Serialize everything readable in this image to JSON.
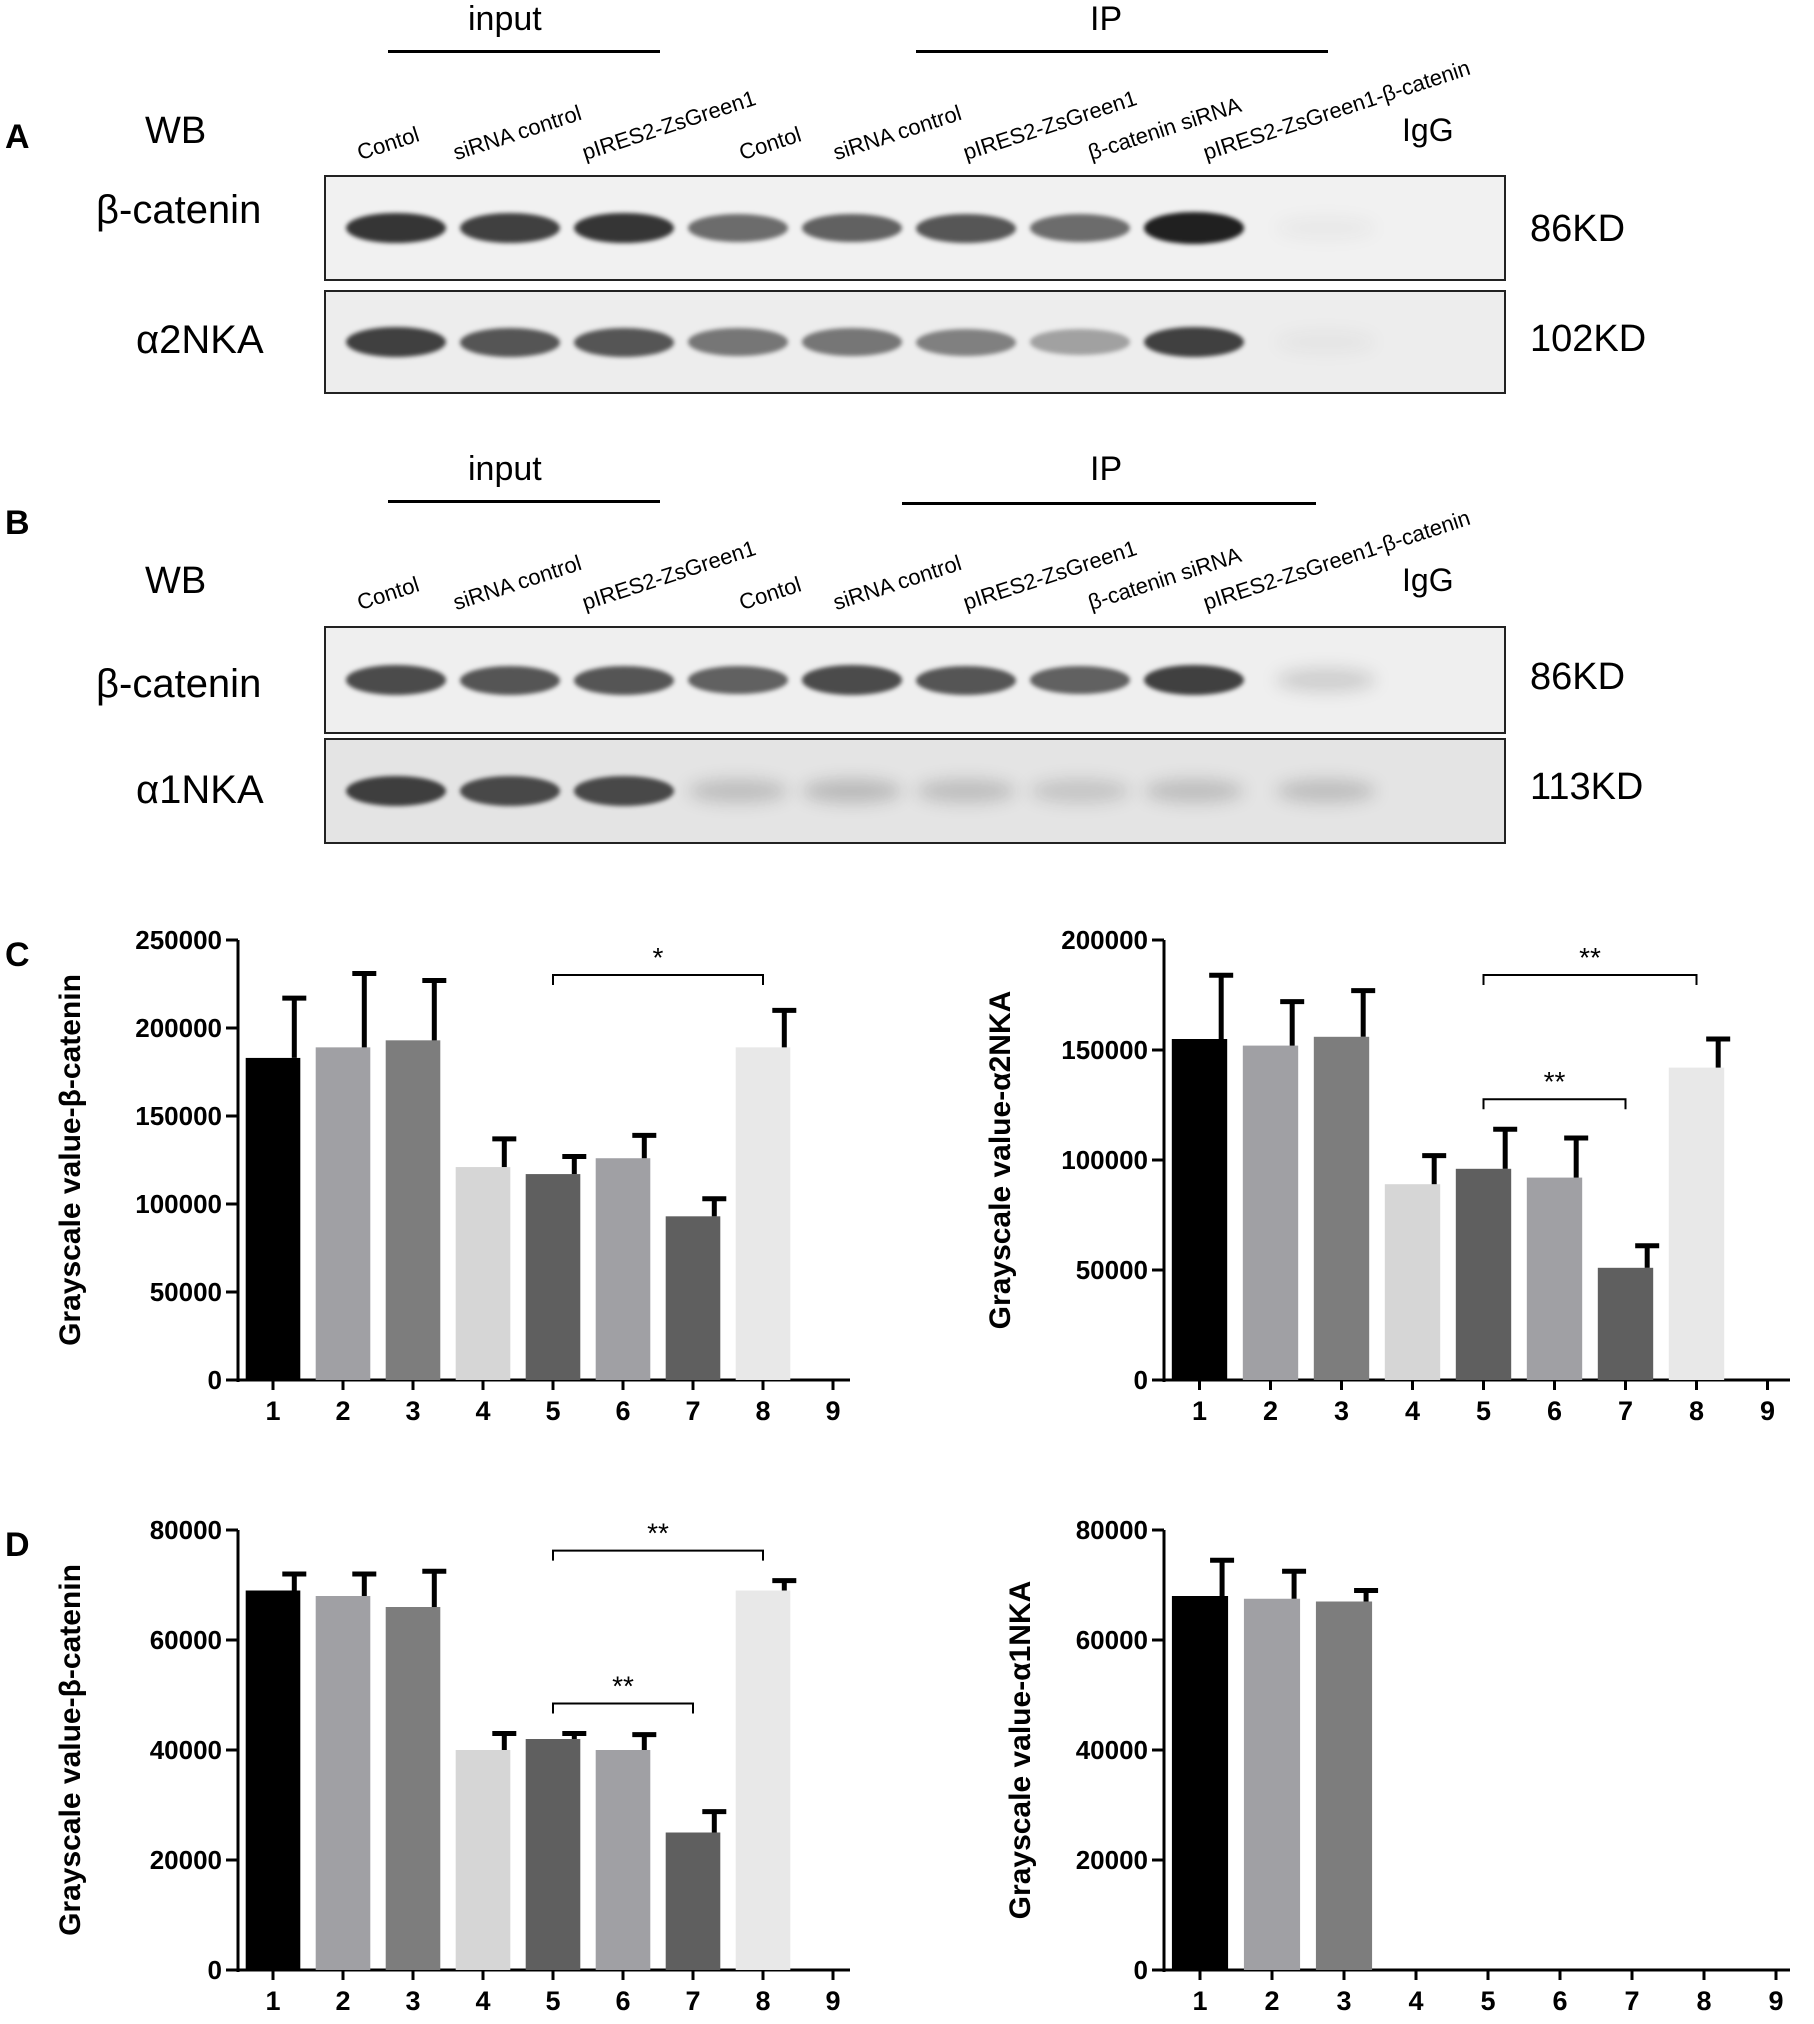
{
  "panels": {
    "A": {
      "letter": "A",
      "input_label": "input",
      "ip_label": "IP",
      "wb_label": "WB",
      "lanes": [
        "Contol",
        "siRNA control",
        "pIRES2-ZsGreen1",
        "Contol",
        "siRNA control",
        "pIRES2-ZsGreen1",
        "β-catenin siRNA",
        "pIRES2-ZsGreen1-β-catenin"
      ],
      "igg_label": "IgG",
      "blots": [
        {
          "protein": "β-catenin",
          "size": "86KD",
          "intensity": [
            0.85,
            0.8,
            0.85,
            0.6,
            0.65,
            0.7,
            0.6,
            0.95,
            0.04
          ]
        },
        {
          "protein": "α2NKA",
          "size": "102KD",
          "intensity": [
            0.8,
            0.7,
            0.7,
            0.55,
            0.55,
            0.5,
            0.35,
            0.8,
            0.04
          ]
        }
      ]
    },
    "B": {
      "letter": "B",
      "input_label": "input",
      "ip_label": "IP",
      "wb_label": "WB",
      "lanes": [
        "Contol",
        "siRNA control",
        "pIRES2-ZsGreen1",
        "Contol",
        "siRNA control",
        "pIRES2-ZsGreen1",
        "β-catenin siRNA",
        "pIRES2-ZsGreen1-β-catenin"
      ],
      "igg_label": "IgG",
      "blots": [
        {
          "protein": "β-catenin",
          "size": "86KD",
          "intensity": [
            0.75,
            0.7,
            0.7,
            0.65,
            0.75,
            0.7,
            0.65,
            0.8,
            0.15
          ]
        },
        {
          "protein": "α1NKA",
          "size": "113KD",
          "intensity": [
            0.8,
            0.75,
            0.75,
            0.18,
            0.2,
            0.18,
            0.15,
            0.18,
            0.18
          ]
        }
      ]
    },
    "C": {
      "letter": "C"
    },
    "D": {
      "letter": "D"
    }
  },
  "bar_colors": [
    "#000000",
    "#a0a0a4",
    "#7d7d7d",
    "#d6d6d6",
    "#5f5f5f",
    "#a0a0a4",
    "#5f5f5f",
    "#e8e8e8",
    "#ffffff"
  ],
  "chart_data": [
    {
      "type": "bar",
      "panel": "C",
      "categories": [
        "1",
        "2",
        "3",
        "4",
        "5",
        "6",
        "7",
        "8",
        "9"
      ],
      "values": [
        183000,
        189000,
        193000,
        121000,
        117000,
        126000,
        93000,
        189000,
        0
      ],
      "errors": [
        34000,
        42000,
        34000,
        16000,
        10000,
        13000,
        10000,
        21000,
        0
      ],
      "ylabel": "Grayscale value-β-catenin",
      "ylim": [
        0,
        250000
      ],
      "yticks": [
        "0",
        "50000",
        "100000",
        "150000",
        "200000",
        "250000"
      ],
      "brackets": [
        {
          "from": "5",
          "to": "8",
          "label": "*"
        }
      ]
    },
    {
      "type": "bar",
      "panel": "C",
      "categories": [
        "1",
        "2",
        "3",
        "4",
        "5",
        "6",
        "7",
        "8",
        "9"
      ],
      "values": [
        155000,
        152000,
        156000,
        89000,
        96000,
        92000,
        51000,
        142000,
        0
      ],
      "errors": [
        29000,
        20000,
        21000,
        13000,
        18000,
        18000,
        10000,
        13000,
        0
      ],
      "ylabel": "Grayscale value-α2NKA",
      "ylim": [
        0,
        200000
      ],
      "yticks": [
        "0",
        "50000",
        "100000",
        "150000",
        "200000"
      ],
      "brackets": [
        {
          "from": "5",
          "to": "8",
          "label": "**"
        },
        {
          "from": "5",
          "to": "7",
          "label": "**"
        }
      ]
    },
    {
      "type": "bar",
      "panel": "D",
      "categories": [
        "1",
        "2",
        "3",
        "4",
        "5",
        "6",
        "7",
        "8",
        "9"
      ],
      "values": [
        69000,
        68000,
        66000,
        40000,
        42000,
        40000,
        25000,
        69000,
        0
      ],
      "errors": [
        3000,
        4000,
        6500,
        3000,
        1000,
        2800,
        3800,
        1800,
        0
      ],
      "ylabel": "Grayscale value-β-catenin",
      "ylim": [
        0,
        80000
      ],
      "yticks": [
        "0",
        "20000",
        "40000",
        "60000",
        "80000"
      ],
      "brackets": [
        {
          "from": "5",
          "to": "8",
          "label": "**"
        },
        {
          "from": "5",
          "to": "7",
          "label": "**"
        }
      ]
    },
    {
      "type": "bar",
      "panel": "D",
      "categories": [
        "1",
        "2",
        "3",
        "4",
        "5",
        "6",
        "7",
        "8",
        "9"
      ],
      "values": [
        68000,
        67500,
        67000,
        0,
        0,
        0,
        0,
        0,
        0
      ],
      "errors": [
        6500,
        5000,
        2000,
        0,
        0,
        0,
        0,
        0,
        0
      ],
      "ylabel": "Grayscale value-α1NKA",
      "ylim": [
        0,
        80000
      ],
      "yticks": [
        "0",
        "20000",
        "40000",
        "60000",
        "80000"
      ],
      "brackets": []
    }
  ]
}
